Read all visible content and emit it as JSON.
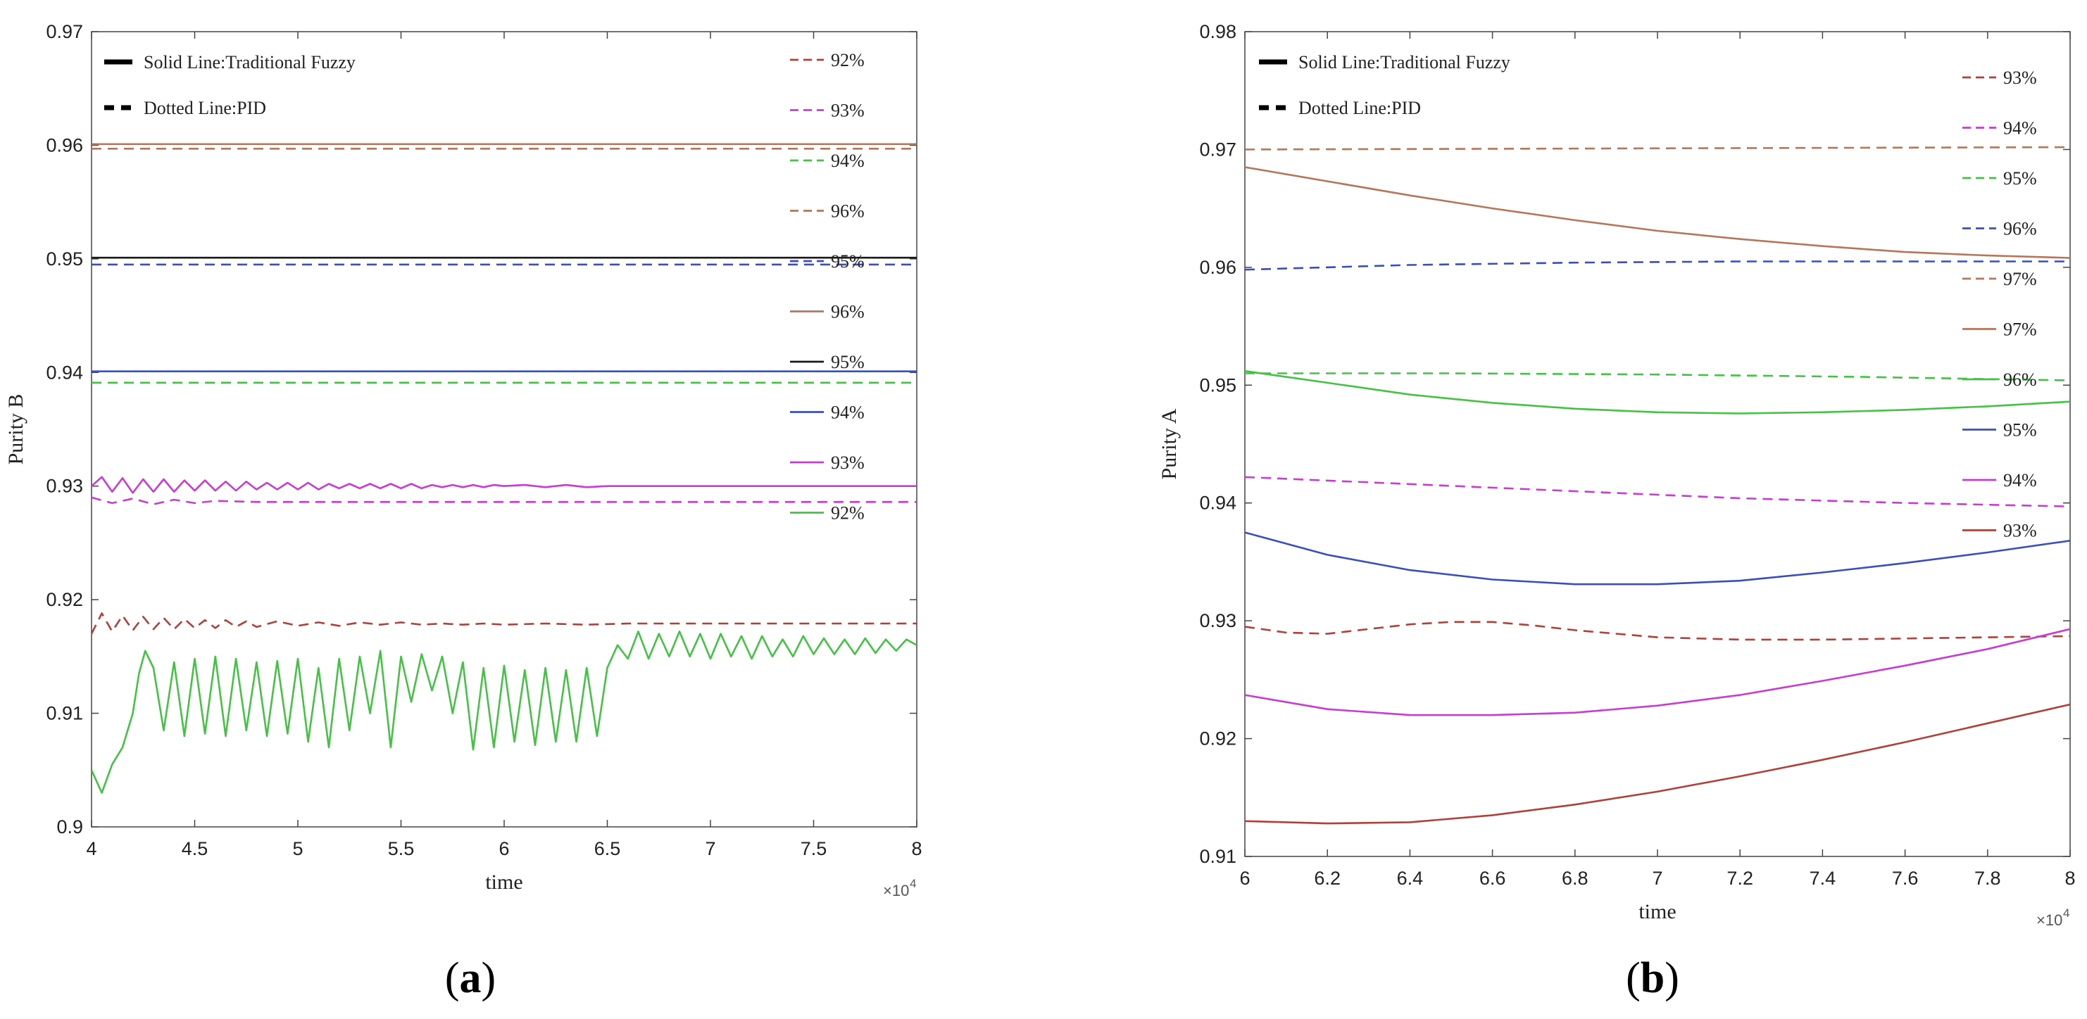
{
  "colors": {
    "brown": "#b5765a",
    "black": "#1a1a1a",
    "blue": "#3a4fb8",
    "magenta": "#c83cd2",
    "green": "#44c244",
    "darkred": "#b0403a"
  },
  "chart_data": [
    {
      "type": "line",
      "caption_open": "(",
      "caption_letter": "a",
      "caption_close": ")",
      "xlabel": "time",
      "ylabel": "Purity B",
      "x_exponent_base": "×10",
      "x_exponent_power": "4",
      "xlim": [
        4,
        8
      ],
      "ylim": [
        0.9,
        0.97
      ],
      "xticks": [
        4,
        4.5,
        5,
        5.5,
        6,
        6.5,
        7,
        7.5,
        8
      ],
      "xtick_labels": [
        "4",
        "4.5",
        "5",
        "5.5",
        "6",
        "6.5",
        "7",
        "7.5",
        "8"
      ],
      "yticks": [
        0.9,
        0.91,
        0.92,
        0.93,
        0.94,
        0.95,
        0.96,
        0.97
      ],
      "ytick_labels": [
        "0.9",
        "0.91",
        "0.92",
        "0.93",
        "0.94",
        "0.95",
        "0.96",
        "0.97"
      ],
      "style_legend": [
        {
          "label": "Solid Line:Traditional Fuzzy",
          "dash": "solid"
        },
        {
          "label": "Dotted Line:PID",
          "dash": "dashed"
        }
      ],
      "legend_position": "top-right",
      "legend": [
        {
          "label": "92%",
          "color": "darkred",
          "dash": "dashed"
        },
        {
          "label": "93%",
          "color": "magenta",
          "dash": "dashed"
        },
        {
          "label": "94%",
          "color": "green",
          "dash": "dashed"
        },
        {
          "label": "96%",
          "color": "brown",
          "dash": "dashed"
        },
        {
          "label": "95%",
          "color": "blue",
          "dash": "dashed"
        },
        {
          "label": "96%",
          "color": "brown",
          "dash": "solid"
        },
        {
          "label": "95%",
          "color": "black",
          "dash": "solid"
        },
        {
          "label": "94%",
          "color": "blue",
          "dash": "solid"
        },
        {
          "label": "93%",
          "color": "magenta",
          "dash": "solid"
        },
        {
          "label": "92%",
          "color": "green",
          "dash": "solid"
        }
      ],
      "series": [
        {
          "name": "Fuzzy 96%",
          "color": "brown",
          "dash": "solid",
          "x": [
            4,
            8
          ],
          "y": [
            0.9601,
            0.9601
          ]
        },
        {
          "name": "PID 96%",
          "color": "brown",
          "dash": "dashed",
          "x": [
            4,
            8
          ],
          "y": [
            0.9597,
            0.9597
          ]
        },
        {
          "name": "Fuzzy 95%",
          "color": "black",
          "dash": "solid",
          "x": [
            4,
            8
          ],
          "y": [
            0.9501,
            0.9501
          ]
        },
        {
          "name": "PID 95%",
          "color": "blue",
          "dash": "dashed",
          "x": [
            4,
            8
          ],
          "y": [
            0.9495,
            0.9495
          ]
        },
        {
          "name": "Fuzzy 94%",
          "color": "blue",
          "dash": "solid",
          "x": [
            4,
            8
          ],
          "y": [
            0.9401,
            0.9401
          ]
        },
        {
          "name": "PID 94%",
          "color": "green",
          "dash": "dashed",
          "x": [
            4,
            8
          ],
          "y": [
            0.9391,
            0.9391
          ]
        },
        {
          "name": "Fuzzy 93%",
          "color": "magenta",
          "dash": "solid",
          "x": [
            4.0,
            4.05,
            4.1,
            4.15,
            4.2,
            4.25,
            4.3,
            4.35,
            4.4,
            4.45,
            4.5,
            4.55,
            4.6,
            4.65,
            4.7,
            4.75,
            4.8,
            4.85,
            4.9,
            4.95,
            5.0,
            5.05,
            5.1,
            5.15,
            5.2,
            5.25,
            5.3,
            5.35,
            5.4,
            5.45,
            5.5,
            5.55,
            5.6,
            5.65,
            5.7,
            5.75,
            5.8,
            5.85,
            5.9,
            5.95,
            6.0,
            6.1,
            6.2,
            6.3,
            6.4,
            6.5,
            6.6,
            6.7,
            6.8,
            7.0,
            7.2,
            7.4,
            7.6,
            7.8,
            8.0
          ],
          "y": [
            0.93,
            0.9308,
            0.9295,
            0.9307,
            0.9294,
            0.9306,
            0.9295,
            0.9306,
            0.9295,
            0.9305,
            0.9296,
            0.9305,
            0.9296,
            0.9304,
            0.9296,
            0.9304,
            0.9297,
            0.9303,
            0.9297,
            0.9303,
            0.9297,
            0.9303,
            0.9297,
            0.9302,
            0.9298,
            0.9302,
            0.9298,
            0.9302,
            0.9298,
            0.9302,
            0.9298,
            0.9302,
            0.9298,
            0.9301,
            0.9299,
            0.9301,
            0.9299,
            0.9301,
            0.9299,
            0.9301,
            0.93,
            0.9301,
            0.9299,
            0.9301,
            0.9299,
            0.93,
            0.93,
            0.93,
            0.93,
            0.93,
            0.93,
            0.93,
            0.93,
            0.93,
            0.93
          ]
        },
        {
          "name": "PID 93%",
          "color": "magenta",
          "dash": "dashed",
          "x": [
            4.0,
            4.1,
            4.2,
            4.3,
            4.4,
            4.5,
            4.6,
            4.8,
            5.0,
            5.5,
            6.0,
            7.0,
            8.0
          ],
          "y": [
            0.929,
            0.9285,
            0.9289,
            0.9284,
            0.9288,
            0.9285,
            0.9287,
            0.9286,
            0.9286,
            0.9286,
            0.9286,
            0.9286,
            0.9286
          ]
        },
        {
          "name": "PID 92%",
          "color": "darkred",
          "dash": "dashed",
          "x": [
            4.0,
            4.05,
            4.1,
            4.15,
            4.2,
            4.25,
            4.3,
            4.35,
            4.4,
            4.45,
            4.5,
            4.55,
            4.6,
            4.65,
            4.7,
            4.75,
            4.8,
            4.9,
            5.0,
            5.1,
            5.2,
            5.3,
            5.4,
            5.5,
            5.6,
            5.7,
            5.8,
            5.9,
            6.0,
            6.2,
            6.4,
            6.6,
            7.0,
            7.5,
            8.0
          ],
          "y": [
            0.917,
            0.9188,
            0.9172,
            0.9186,
            0.9173,
            0.9185,
            0.9174,
            0.9184,
            0.9174,
            0.9183,
            0.9175,
            0.9182,
            0.9175,
            0.9182,
            0.9176,
            0.9181,
            0.9176,
            0.9181,
            0.9177,
            0.918,
            0.9177,
            0.918,
            0.9178,
            0.918,
            0.9178,
            0.9179,
            0.9178,
            0.9179,
            0.9178,
            0.9179,
            0.9178,
            0.9179,
            0.9179,
            0.9179,
            0.9179
          ]
        },
        {
          "name": "Fuzzy 92%",
          "color": "green",
          "dash": "solid",
          "x": [
            4.0,
            4.05,
            4.1,
            4.15,
            4.2,
            4.23,
            4.26,
            4.3,
            4.35,
            4.4,
            4.45,
            4.5,
            4.55,
            4.6,
            4.65,
            4.7,
            4.75,
            4.8,
            4.85,
            4.9,
            4.95,
            5.0,
            5.05,
            5.1,
            5.15,
            5.2,
            5.25,
            5.3,
            5.35,
            5.4,
            5.45,
            5.5,
            5.55,
            5.6,
            5.65,
            5.7,
            5.75,
            5.8,
            5.85,
            5.9,
            5.95,
            6.0,
            6.05,
            6.1,
            6.15,
            6.2,
            6.25,
            6.3,
            6.35,
            6.4,
            6.45,
            6.5,
            6.55,
            6.6,
            6.65,
            6.7,
            6.75,
            6.8,
            6.85,
            6.9,
            6.95,
            7.0,
            7.05,
            7.1,
            7.15,
            7.2,
            7.25,
            7.3,
            7.35,
            7.4,
            7.45,
            7.5,
            7.55,
            7.6,
            7.65,
            7.7,
            7.75,
            7.8,
            7.85,
            7.9,
            7.95,
            8.0
          ],
          "y": [
            0.905,
            0.903,
            0.9055,
            0.907,
            0.91,
            0.9135,
            0.9155,
            0.914,
            0.9085,
            0.9145,
            0.908,
            0.9148,
            0.9082,
            0.915,
            0.908,
            0.9148,
            0.9085,
            0.9145,
            0.908,
            0.9146,
            0.9082,
            0.9148,
            0.9075,
            0.914,
            0.907,
            0.9148,
            0.9085,
            0.915,
            0.91,
            0.9155,
            0.907,
            0.915,
            0.911,
            0.9152,
            0.912,
            0.915,
            0.91,
            0.9145,
            0.9068,
            0.914,
            0.907,
            0.9142,
            0.9075,
            0.9138,
            0.9072,
            0.914,
            0.9075,
            0.9138,
            0.9075,
            0.914,
            0.908,
            0.914,
            0.916,
            0.9148,
            0.9172,
            0.9148,
            0.917,
            0.915,
            0.9172,
            0.915,
            0.917,
            0.9148,
            0.917,
            0.915,
            0.9168,
            0.9148,
            0.9168,
            0.915,
            0.9165,
            0.915,
            0.9168,
            0.9152,
            0.9166,
            0.9152,
            0.9165,
            0.9152,
            0.9166,
            0.9153,
            0.9165,
            0.9155,
            0.9165,
            0.916
          ]
        }
      ]
    },
    {
      "type": "line",
      "caption_open": "(",
      "caption_letter": "b",
      "caption_close": ")",
      "xlabel": "time",
      "ylabel": "Purity A",
      "x_exponent_base": "×10",
      "x_exponent_power": "4",
      "xlim": [
        6,
        8
      ],
      "ylim": [
        0.91,
        0.98
      ],
      "xticks": [
        6,
        6.2,
        6.4,
        6.6,
        6.8,
        7,
        7.2,
        7.4,
        7.6,
        7.8,
        8
      ],
      "xtick_labels": [
        "6",
        "6.2",
        "6.4",
        "6.6",
        "6.8",
        "7",
        "7.2",
        "7.4",
        "7.6",
        "7.8",
        "8"
      ],
      "yticks": [
        0.91,
        0.92,
        0.93,
        0.94,
        0.95,
        0.96,
        0.97,
        0.98
      ],
      "ytick_labels": [
        "0.91",
        "0.92",
        "0.93",
        "0.94",
        "0.95",
        "0.96",
        "0.97",
        "0.98"
      ],
      "style_legend": [
        {
          "label": "Solid Line:Traditional Fuzzy",
          "dash": "solid"
        },
        {
          "label": "Dotted Line:PID",
          "dash": "dashed"
        }
      ],
      "legend_position": "top-right",
      "legend": [
        {
          "label": "93%",
          "color": "darkred",
          "dash": "dashed"
        },
        {
          "label": "94%",
          "color": "magenta",
          "dash": "dashed"
        },
        {
          "label": "95%",
          "color": "green",
          "dash": "dashed"
        },
        {
          "label": "96%",
          "color": "blue",
          "dash": "dashed"
        },
        {
          "label": "97%",
          "color": "brown",
          "dash": "dashed"
        },
        {
          "label": "97%",
          "color": "brown",
          "dash": "solid"
        },
        {
          "label": "96%",
          "color": "green",
          "dash": "solid"
        },
        {
          "label": "95%",
          "color": "blue",
          "dash": "solid"
        },
        {
          "label": "94%",
          "color": "magenta",
          "dash": "solid"
        },
        {
          "label": "93%",
          "color": "darkred",
          "dash": "solid"
        }
      ],
      "series": [
        {
          "name": "PID 97%",
          "color": "brown",
          "dash": "dashed",
          "x": [
            6,
            7,
            8
          ],
          "y": [
            0.97,
            0.9701,
            0.9702
          ]
        },
        {
          "name": "Fuzzy 97%",
          "color": "brown",
          "dash": "solid",
          "x": [
            6.0,
            6.2,
            6.4,
            6.6,
            6.8,
            7.0,
            7.2,
            7.4,
            7.6,
            7.8,
            8.0
          ],
          "y": [
            0.9685,
            0.9673,
            0.9661,
            0.965,
            0.964,
            0.9631,
            0.9624,
            0.9618,
            0.9613,
            0.961,
            0.9608
          ]
        },
        {
          "name": "PID 96%",
          "color": "blue",
          "dash": "dashed",
          "x": [
            6.0,
            6.4,
            6.8,
            7.2,
            7.6,
            8.0
          ],
          "y": [
            0.9598,
            0.9602,
            0.9604,
            0.9605,
            0.9605,
            0.9605
          ]
        },
        {
          "name": "PID 95%",
          "color": "green",
          "dash": "dashed",
          "x": [
            6.0,
            6.5,
            7.0,
            7.5,
            8.0
          ],
          "y": [
            0.951,
            0.951,
            0.9509,
            0.9507,
            0.9504
          ]
        },
        {
          "name": "Fuzzy 96%",
          "color": "green",
          "dash": "solid",
          "x": [
            6.0,
            6.2,
            6.4,
            6.6,
            6.8,
            7.0,
            7.2,
            7.4,
            7.6,
            7.8,
            8.0
          ],
          "y": [
            0.9512,
            0.9502,
            0.9492,
            0.9485,
            0.948,
            0.9477,
            0.9476,
            0.9477,
            0.9479,
            0.9482,
            0.9486
          ]
        },
        {
          "name": "PID 94%",
          "color": "magenta",
          "dash": "dashed",
          "x": [
            6.0,
            6.4,
            6.8,
            7.2,
            7.6,
            8.0
          ],
          "y": [
            0.9422,
            0.9416,
            0.941,
            0.9404,
            0.94,
            0.9397
          ]
        },
        {
          "name": "Fuzzy 95%",
          "color": "blue",
          "dash": "solid",
          "x": [
            6.0,
            6.2,
            6.4,
            6.6,
            6.8,
            7.0,
            7.2,
            7.4,
            7.6,
            7.8,
            8.0
          ],
          "y": [
            0.9375,
            0.9356,
            0.9343,
            0.9335,
            0.9331,
            0.9331,
            0.9334,
            0.9341,
            0.9349,
            0.9358,
            0.9368
          ]
        },
        {
          "name": "PID 93%",
          "color": "darkred",
          "dash": "dashed",
          "x": [
            6.0,
            6.1,
            6.2,
            6.3,
            6.4,
            6.5,
            6.6,
            6.7,
            6.8,
            7.0,
            7.2,
            7.4,
            7.6,
            7.8,
            8.0
          ],
          "y": [
            0.9295,
            0.929,
            0.9289,
            0.9293,
            0.9297,
            0.9299,
            0.9299,
            0.9296,
            0.9292,
            0.9286,
            0.9284,
            0.9284,
            0.9285,
            0.9286,
            0.9287
          ]
        },
        {
          "name": "Fuzzy 94%",
          "color": "magenta",
          "dash": "solid",
          "x": [
            6.0,
            6.2,
            6.4,
            6.6,
            6.8,
            7.0,
            7.2,
            7.4,
            7.6,
            7.8,
            8.0
          ],
          "y": [
            0.9237,
            0.9225,
            0.922,
            0.922,
            0.9222,
            0.9228,
            0.9237,
            0.9249,
            0.9262,
            0.9276,
            0.9293
          ]
        },
        {
          "name": "Fuzzy 93%",
          "color": "darkred",
          "dash": "solid",
          "x": [
            6.0,
            6.2,
            6.4,
            6.6,
            6.8,
            7.0,
            7.2,
            7.4,
            7.6,
            7.8,
            8.0
          ],
          "y": [
            0.913,
            0.9128,
            0.9129,
            0.9135,
            0.9144,
            0.9155,
            0.9168,
            0.9182,
            0.9197,
            0.9213,
            0.9229
          ]
        }
      ]
    }
  ]
}
